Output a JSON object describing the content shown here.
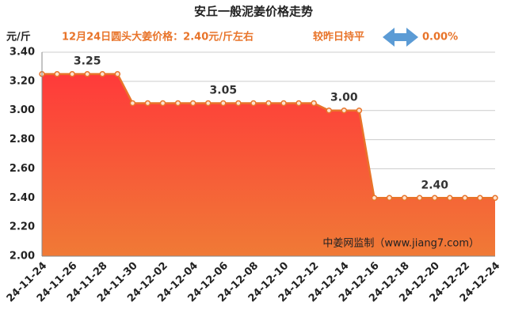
{
  "chart_data": {
    "type": "line",
    "title": "安丘一般泥姜价格走势",
    "y_label": "元/斤",
    "subtitle": "12月24日圆头大姜价格：2.40元/斤左右",
    "change_text": "较昨日持平",
    "change_value": "0.00%",
    "watermark": "中姜网监制（www.jiang7.com）",
    "categories": [
      "24-11-24",
      null,
      "24-11-26",
      null,
      "24-11-28",
      null,
      "24-11-30",
      null,
      "24-12-02",
      null,
      "24-12-04",
      null,
      "24-12-06",
      null,
      "24-12-08",
      null,
      "24-12-10",
      null,
      "24-12-12",
      null,
      "24-12-14",
      null,
      "24-12-16",
      null,
      "24-12-18",
      null,
      "24-12-20",
      null,
      "24-12-22",
      null,
      "24-12-24"
    ],
    "values": [
      3.25,
      3.25,
      3.25,
      3.25,
      3.25,
      3.25,
      3.05,
      3.05,
      3.05,
      3.05,
      3.05,
      3.05,
      3.05,
      3.05,
      3.05,
      3.05,
      3.05,
      3.05,
      3.05,
      3.0,
      3.0,
      3.0,
      2.4,
      2.4,
      2.4,
      2.4,
      2.4,
      2.4,
      2.4,
      2.4,
      2.4
    ],
    "value_labels": [
      null,
      null,
      null,
      "3.25",
      null,
      null,
      null,
      null,
      null,
      null,
      null,
      null,
      "3.05",
      null,
      null,
      null,
      null,
      null,
      null,
      null,
      "3.00",
      null,
      null,
      null,
      null,
      null,
      "2.40",
      null,
      null,
      null,
      null
    ],
    "color": "#e8742a",
    "ylim": [
      2.0,
      3.4
    ],
    "yticks": [
      {
        "value": 2.0,
        "label": "2.00"
      },
      {
        "value": 2.2,
        "label": "2.20"
      },
      {
        "value": 2.4,
        "label": "2.40"
      },
      {
        "value": 2.6,
        "label": "2.60"
      },
      {
        "value": 2.8,
        "label": "2.80"
      },
      {
        "value": 3.0,
        "label": "3.00"
      },
      {
        "value": 3.2,
        "label": "3.20"
      },
      {
        "value": 3.4,
        "label": "3.40"
      }
    ],
    "grid": true
  }
}
